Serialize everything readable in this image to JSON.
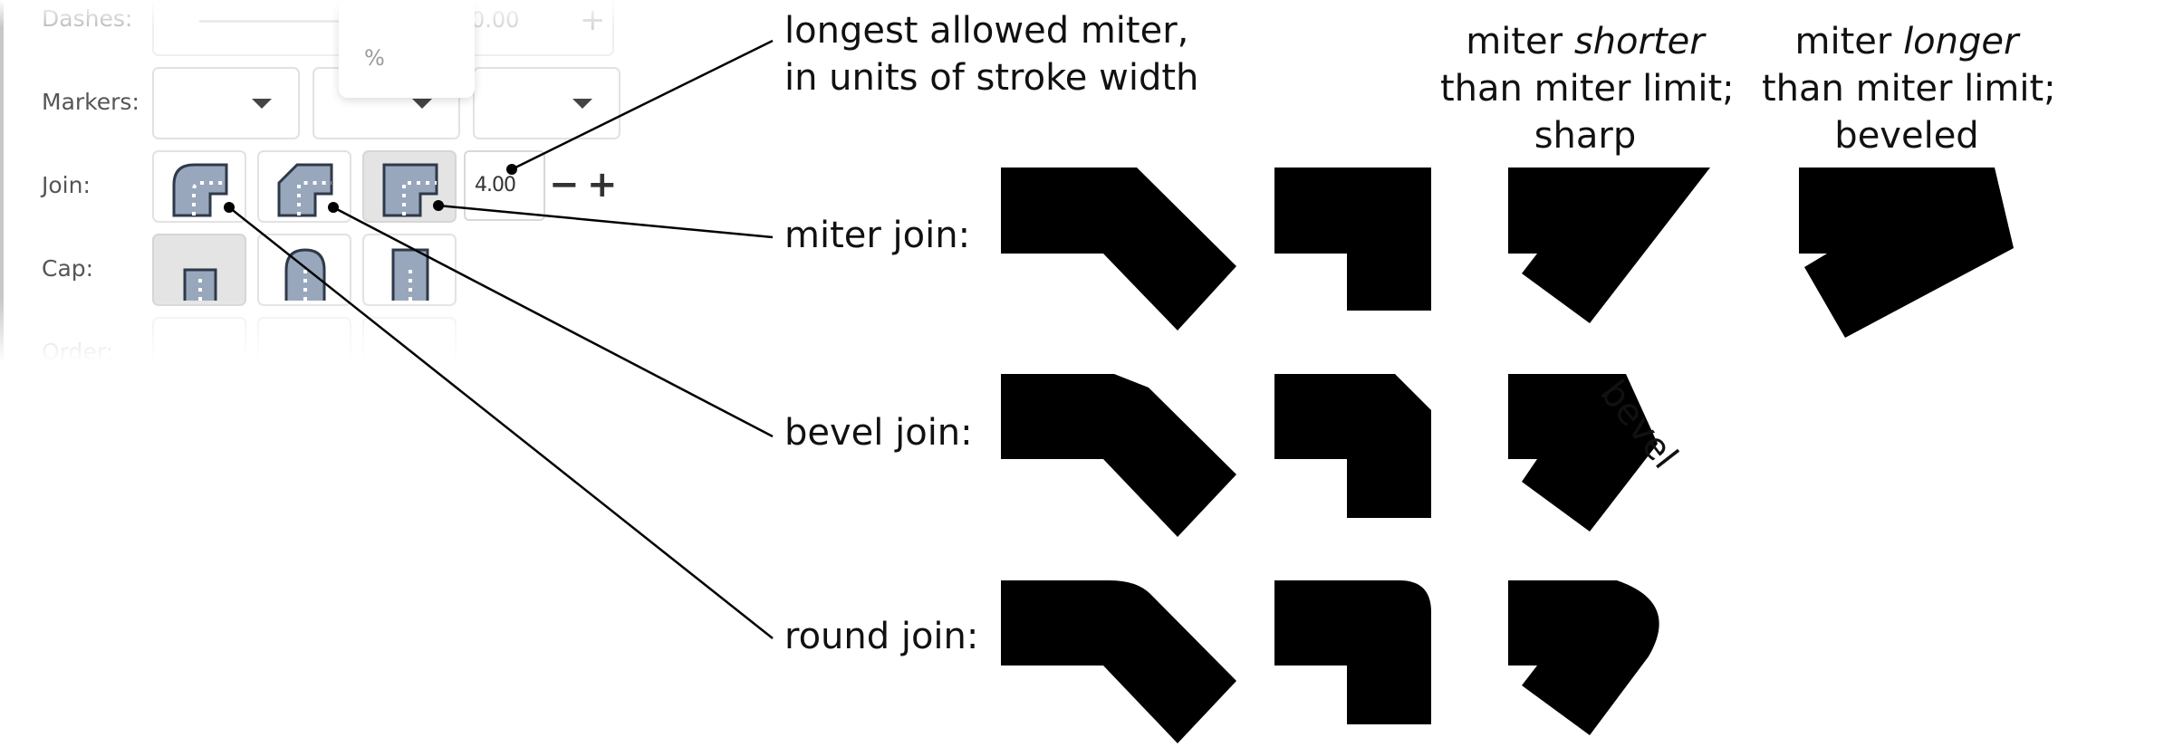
{
  "panel": {
    "rows": [
      {
        "label": "Dashes:"
      },
      {
        "label": "Markers:"
      },
      {
        "label": "Join:"
      },
      {
        "label": "Cap:"
      },
      {
        "label": "Order:"
      }
    ],
    "dash_value": "0.00",
    "dash_plus": "+",
    "popup_unit": "%",
    "miter_limit_value": "4.00",
    "minus_label": "−",
    "plus_label": "+",
    "join_buttons": [
      "round-join",
      "bevel-join",
      "miter-join"
    ],
    "cap_buttons": [
      "butt-cap",
      "round-cap",
      "square-cap"
    ]
  },
  "annotations": {
    "miter_limit_line1": "longest allowed miter,",
    "miter_limit_line2": "in units of stroke width",
    "miter_join": "miter join:",
    "bevel_join": "bevel join:",
    "round_join": "round join:",
    "shorter": {
      "pre": "miter ",
      "em": "shorter",
      "line2": "than miter limit;",
      "line3": "sharp"
    },
    "longer": {
      "pre": "miter ",
      "em": "longer",
      "line2": "than miter limit;",
      "line3": "beveled"
    },
    "bevel_label": "bevel"
  },
  "colors": {
    "shape_fill": "#000000",
    "button_pressed": "#e4e4e4",
    "icon_fill": "#98a7bb"
  }
}
